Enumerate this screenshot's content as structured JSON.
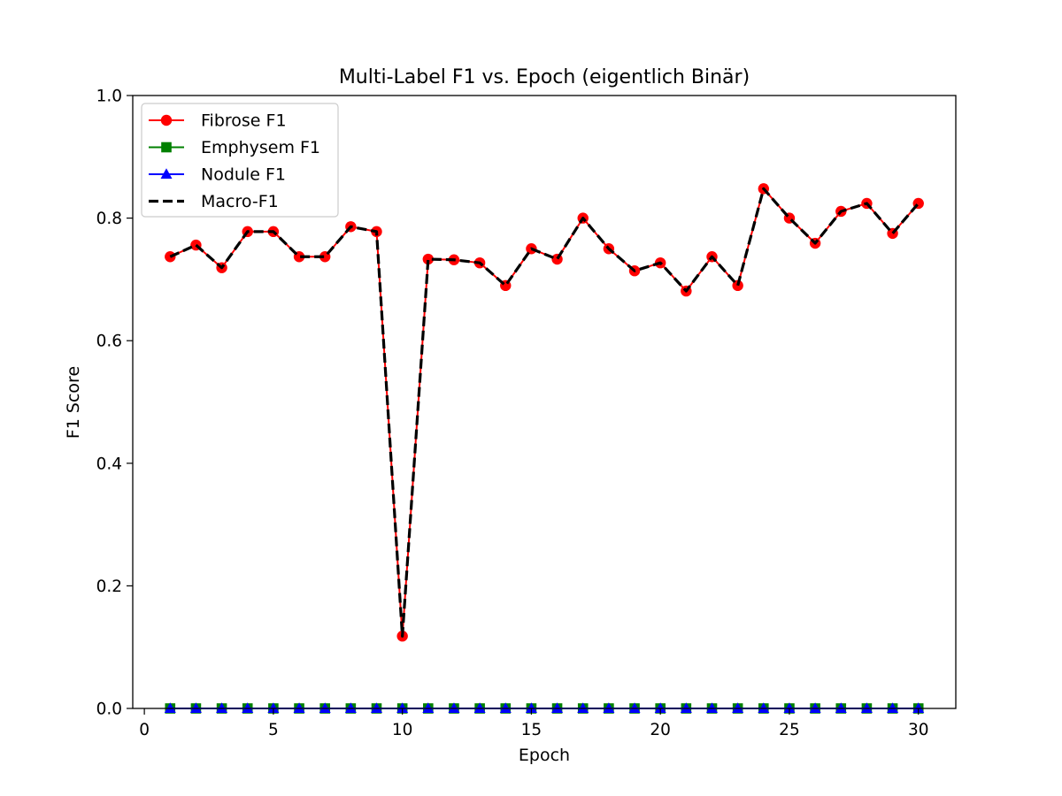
{
  "chart_data": {
    "type": "line",
    "title": "Multi-Label F1 vs. Epoch (eigentlich Binär)",
    "xlabel": "Epoch",
    "ylabel": "F1 Score",
    "xlim": [
      -0.45,
      31.45
    ],
    "ylim": [
      0,
      1.0
    ],
    "xticks": [
      0,
      5,
      10,
      15,
      20,
      25,
      30
    ],
    "yticks": [
      0.0,
      0.2,
      0.4,
      0.6,
      0.8,
      1.0
    ],
    "xtick_labels": [
      "0",
      "5",
      "10",
      "15",
      "20",
      "25",
      "30"
    ],
    "ytick_labels": [
      "0.0",
      "0.2",
      "0.4",
      "0.6",
      "0.8",
      "1.0"
    ],
    "grid": false,
    "legend_position": "upper-left",
    "x": [
      1,
      2,
      3,
      4,
      5,
      6,
      7,
      8,
      9,
      10,
      11,
      12,
      13,
      14,
      15,
      16,
      17,
      18,
      19,
      20,
      21,
      22,
      23,
      24,
      25,
      26,
      27,
      28,
      29,
      30
    ],
    "series": [
      {
        "name": "Fibrose F1",
        "color": "#ff0000",
        "marker": "circle",
        "line_style": "solid",
        "values": [
          0.737,
          0.756,
          0.719,
          0.778,
          0.778,
          0.737,
          0.737,
          0.786,
          0.778,
          0.118,
          0.733,
          0.732,
          0.727,
          0.69,
          0.75,
          0.733,
          0.8,
          0.75,
          0.714,
          0.727,
          0.681,
          0.737,
          0.69,
          0.848,
          0.8,
          0.759,
          0.811,
          0.824,
          0.775,
          0.824
        ]
      },
      {
        "name": "Emphysem F1",
        "color": "#008000",
        "marker": "square",
        "line_style": "solid",
        "values": [
          0,
          0,
          0,
          0,
          0,
          0,
          0,
          0,
          0,
          0,
          0,
          0,
          0,
          0,
          0,
          0,
          0,
          0,
          0,
          0,
          0,
          0,
          0,
          0,
          0,
          0,
          0,
          0,
          0,
          0
        ]
      },
      {
        "name": "Nodule F1",
        "color": "#0000ff",
        "marker": "triangle",
        "line_style": "solid",
        "values": [
          0,
          0,
          0,
          0,
          0,
          0,
          0,
          0,
          0,
          0,
          0,
          0,
          0,
          0,
          0,
          0,
          0,
          0,
          0,
          0,
          0,
          0,
          0,
          0,
          0,
          0,
          0,
          0,
          0,
          0
        ]
      },
      {
        "name": "Macro-F1",
        "color": "#000000",
        "marker": "none",
        "line_style": "dashed",
        "values": [
          0.737,
          0.756,
          0.719,
          0.778,
          0.778,
          0.737,
          0.737,
          0.786,
          0.778,
          0.118,
          0.733,
          0.732,
          0.727,
          0.69,
          0.75,
          0.733,
          0.8,
          0.75,
          0.714,
          0.727,
          0.681,
          0.737,
          0.69,
          0.848,
          0.8,
          0.759,
          0.811,
          0.824,
          0.775,
          0.824
        ]
      }
    ]
  }
}
